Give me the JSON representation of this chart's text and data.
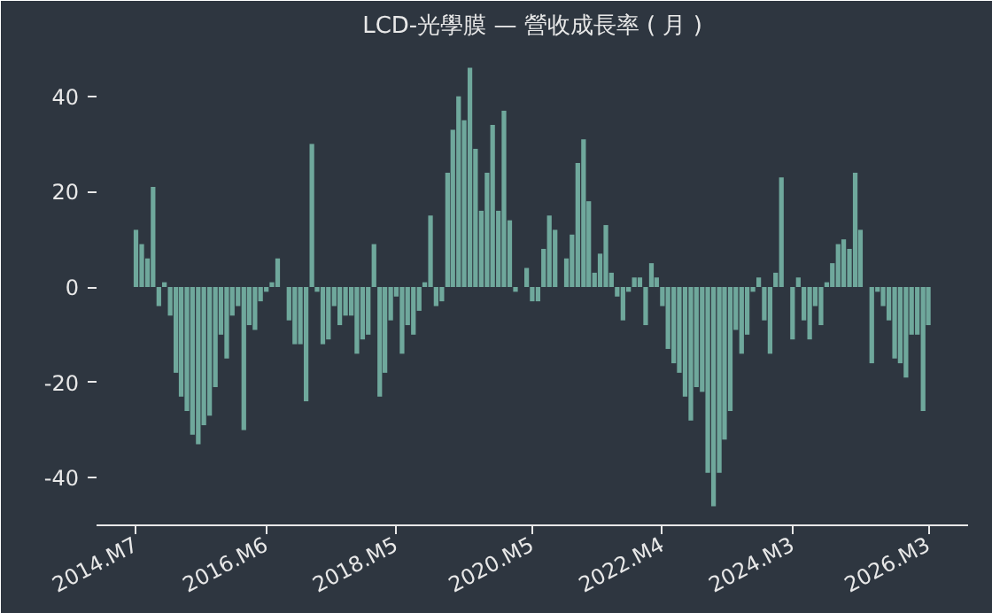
{
  "chart_data": {
    "type": "bar",
    "title": "LCD-光學膜 — 營收成長率 ( 月 )",
    "color": "#6fa89c",
    "x": [
      "2014-07",
      "2014-08",
      "2014-09",
      "2014-10",
      "2014-11",
      "2014-12",
      "2015-01",
      "2015-02",
      "2015-03",
      "2015-04",
      "2015-05",
      "2015-06",
      "2015-07",
      "2015-08",
      "2015-09",
      "2015-10",
      "2015-11",
      "2015-12",
      "2016-01",
      "2016-02",
      "2016-03",
      "2016-04",
      "2016-05",
      "2016-06",
      "2016-07",
      "2016-08",
      "2016-09",
      "2016-10",
      "2016-11",
      "2016-12",
      "2017-01",
      "2017-02",
      "2017-03",
      "2017-04",
      "2017-05",
      "2017-06",
      "2017-07",
      "2017-08",
      "2017-09",
      "2017-10",
      "2017-11",
      "2017-12",
      "2018-01",
      "2018-02",
      "2018-03",
      "2018-04",
      "2018-05",
      "2018-06",
      "2018-07",
      "2018-08",
      "2018-09",
      "2018-10",
      "2018-11",
      "2018-12",
      "2019-01",
      "2019-02",
      "2019-03",
      "2019-04",
      "2019-05",
      "2019-06",
      "2019-07",
      "2019-08",
      "2019-09",
      "2019-10",
      "2019-11",
      "2019-12",
      "2020-01",
      "2020-02",
      "2020-03",
      "2020-04",
      "2020-05",
      "2020-06",
      "2020-07",
      "2020-08",
      "2020-09",
      "2020-10",
      "2020-11",
      "2020-12",
      "2021-01",
      "2021-02",
      "2021-03",
      "2021-04",
      "2021-05",
      "2021-06",
      "2021-07",
      "2021-08",
      "2021-09",
      "2021-10",
      "2021-11",
      "2021-12",
      "2022-01",
      "2022-02",
      "2022-03",
      "2022-04",
      "2022-05",
      "2022-06",
      "2022-07",
      "2022-08",
      "2022-09",
      "2022-10",
      "2022-11",
      "2022-12",
      "2023-01",
      "2023-02",
      "2023-03",
      "2023-04",
      "2023-05",
      "2023-06",
      "2023-07",
      "2023-08",
      "2023-09",
      "2023-10",
      "2023-11",
      "2023-12",
      "2024-01",
      "2024-02",
      "2024-03",
      "2024-04",
      "2024-05",
      "2024-06",
      "2024-07",
      "2024-08",
      "2024-09",
      "2024-10",
      "2024-11",
      "2024-12",
      "2025-01",
      "2025-02",
      "2025-03",
      "2025-04",
      "2025-05",
      "2025-06",
      "2025-07",
      "2025-08",
      "2025-09",
      "2025-10",
      "2025-11",
      "2025-12",
      "2026-01",
      "2026-02",
      "2026-03"
    ],
    "values": [
      12,
      9,
      6,
      21,
      -4,
      1,
      -6,
      -18,
      -23,
      -26,
      -31,
      -33,
      -29,
      -27,
      -21,
      -10,
      -15,
      -6,
      -4,
      -30,
      -8,
      -9,
      -3,
      -1,
      1,
      6,
      0,
      -7,
      -12,
      -12,
      -24,
      30,
      -1,
      -12,
      -11,
      -4,
      -8,
      -6,
      -6,
      -14,
      -11,
      -10,
      9,
      -23,
      -18,
      -7,
      -2,
      -14,
      -8,
      -10,
      -5,
      1,
      15,
      -4,
      -3,
      24,
      33,
      40,
      35,
      46,
      29,
      16,
      24,
      34,
      16,
      37,
      14,
      -1,
      0,
      4,
      -3,
      -3,
      8,
      15,
      12,
      0,
      6,
      11,
      26,
      31,
      18,
      3,
      7,
      13,
      3,
      -2,
      -7,
      -1,
      2,
      2,
      -8,
      5,
      2,
      -4,
      -13,
      -16,
      -18,
      -23,
      -28,
      -21,
      -22,
      -39,
      -46,
      -39,
      -32,
      -26,
      -9,
      -14,
      -10,
      -1,
      2,
      -7,
      -14,
      3,
      23,
      0,
      -11,
      2,
      -7,
      -11,
      -4,
      -8,
      1,
      5,
      9,
      10,
      8,
      24,
      12,
      0,
      -16,
      -1,
      -4,
      -7,
      -15,
      -16,
      -19,
      -10,
      -10,
      -26,
      -8
    ],
    "xlim": [
      "2013-12",
      "2026-10"
    ],
    "xticks": [
      {
        "value": "2014-07",
        "label": "2014.M7"
      },
      {
        "value": "2016-06",
        "label": "2016.M6"
      },
      {
        "value": "2018-05",
        "label": "2018.M5"
      },
      {
        "value": "2020-05",
        "label": "2020.M5"
      },
      {
        "value": "2022-04",
        "label": "2022.M4"
      },
      {
        "value": "2024-03",
        "label": "2024.M3"
      },
      {
        "value": "2026-03",
        "label": "2026.M3"
      }
    ],
    "ylim": [
      -50,
      50
    ],
    "yticks": [
      -40,
      -20,
      0,
      20,
      40
    ],
    "grid": false
  }
}
